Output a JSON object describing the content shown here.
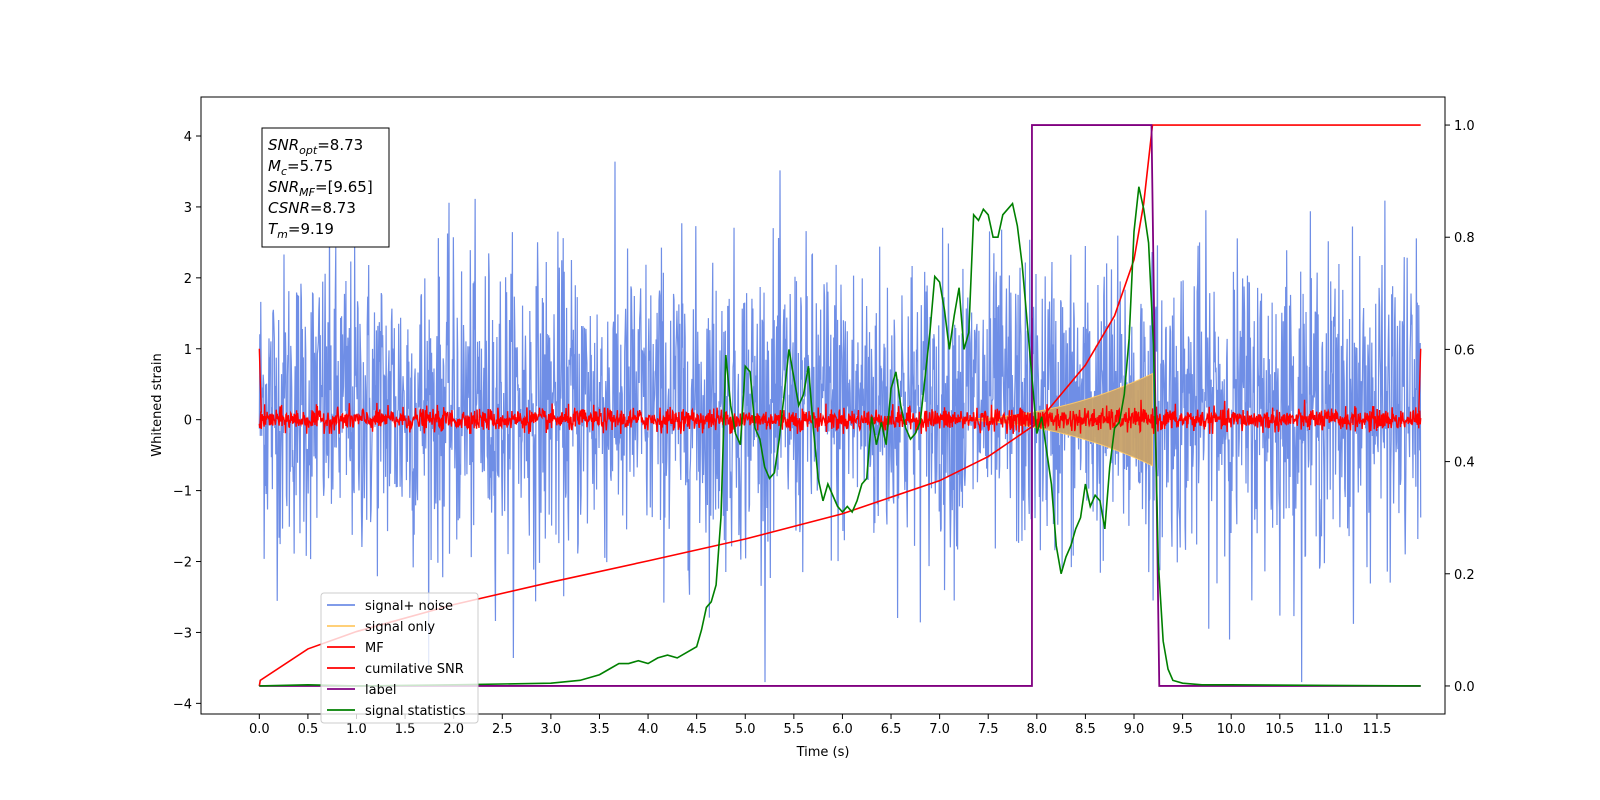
{
  "chart_data": {
    "type": "line",
    "title": "",
    "xlabel": "Time (s)",
    "ylabel": "Whitened strain",
    "xlim": [
      -0.6,
      12.2
    ],
    "ylim": [
      -4.15,
      4.55
    ],
    "y2lim": [
      -0.05,
      1.05
    ],
    "xticks": [
      0.0,
      0.5,
      1.0,
      1.5,
      2.0,
      2.5,
      3.0,
      3.5,
      4.0,
      4.5,
      5.0,
      5.5,
      6.0,
      6.5,
      7.0,
      7.5,
      8.0,
      8.5,
      9.0,
      9.5,
      10.0,
      10.5,
      11.0,
      11.5
    ],
    "xtick_labels": [
      "0.0",
      "0.5",
      "1.0",
      "1.5",
      "2.0",
      "2.5",
      "3.0",
      "3.5",
      "4.0",
      "4.5",
      "5.0",
      "5.5",
      "6.0",
      "6.5",
      "7.0",
      "7.5",
      "8.0",
      "8.5",
      "9.0",
      "9.5",
      "10.0",
      "10.5",
      "11.0",
      "11.5"
    ],
    "yticks": [
      4,
      3,
      2,
      1,
      0,
      -1,
      -2,
      -3,
      -4
    ],
    "ytick_labels": [
      "4",
      "3",
      "2",
      "1",
      "0",
      "−1",
      "−2",
      "−3",
      "−4"
    ],
    "y2ticks": [
      1.0,
      0.8,
      0.6,
      0.4,
      0.2,
      0.0
    ],
    "y2tick_labels": [
      "1.0",
      "0.8",
      "0.6",
      "0.4",
      "0.2",
      "0.0"
    ],
    "legend": {
      "placement": "lower-left",
      "entries": [
        {
          "name": "signal+ noise",
          "color": "#6f8ee6"
        },
        {
          "name": "signal only",
          "color": "#ffc966"
        },
        {
          "name": "MF",
          "color": "#ff0000"
        },
        {
          "name": "cumilative SNR",
          "color": "#ff0000"
        },
        {
          "name": "label",
          "color": "#800080"
        },
        {
          "name": "signal statistics",
          "color": "#008000"
        }
      ]
    },
    "annotations": [
      {
        "base": "SNR",
        "sub": "opt",
        "value": "=8.73"
      },
      {
        "base": "M",
        "sub": "c",
        "value": "=5.75"
      },
      {
        "base": "SNR",
        "sub": "MF",
        "value": "=[9.65]"
      },
      {
        "base": "CSNR",
        "sub": "",
        "value": "=8.73"
      },
      {
        "base": "T",
        "sub": "m",
        "value": "=9.19"
      }
    ],
    "series": [
      {
        "name": "signal+ noise",
        "color": "#6f8ee6",
        "axis": "left",
        "description": "whitened noise between approximately -3.7 and 4.2 spanning 0.0 to 11.95 s"
      },
      {
        "name": "signal only",
        "color": "#ffc966",
        "axis": "left",
        "chirp_start": 7.0,
        "chirp_end": 9.19,
        "max_amplitude": 0.65
      },
      {
        "name": "MF",
        "color": "#ff0000",
        "axis": "left",
        "noise_amplitude": 0.2
      },
      {
        "name": "cumilative SNR",
        "color": "#ff0000",
        "axis": "right",
        "x": [
          0.0,
          0.01,
          0.5,
          1.0,
          2.0,
          3.0,
          4.0,
          5.0,
          6.0,
          7.0,
          7.5,
          8.0,
          8.5,
          8.8,
          9.0,
          9.1,
          9.19,
          9.2,
          11.95
        ],
        "y": [
          0.0,
          0.01,
          0.066,
          0.097,
          0.145,
          0.185,
          0.223,
          0.262,
          0.307,
          0.366,
          0.409,
          0.468,
          0.572,
          0.66,
          0.76,
          0.86,
          1.0,
          1.0,
          1.0
        ]
      },
      {
        "name": "label",
        "color": "#800080",
        "axis": "right",
        "x": [
          0.0,
          7.95,
          7.95,
          9.18,
          9.26,
          11.95
        ],
        "y": [
          0.0,
          0.0,
          1.0,
          1.0,
          0.0,
          0.0
        ]
      },
      {
        "name": "signal statistics",
        "color": "#008000",
        "axis": "right",
        "x": [
          0.0,
          0.5,
          1.0,
          2.0,
          3.0,
          3.3,
          3.5,
          3.6,
          3.7,
          3.8,
          3.9,
          4.0,
          4.1,
          4.2,
          4.3,
          4.4,
          4.5,
          4.55,
          4.6,
          4.65,
          4.7,
          4.75,
          4.8,
          4.85,
          4.9,
          4.95,
          5.0,
          5.05,
          5.1,
          5.15,
          5.2,
          5.25,
          5.3,
          5.35,
          5.4,
          5.45,
          5.5,
          5.55,
          5.6,
          5.65,
          5.7,
          5.75,
          5.8,
          5.85,
          5.9,
          5.95,
          6.0,
          6.05,
          6.1,
          6.15,
          6.2,
          6.25,
          6.3,
          6.35,
          6.4,
          6.45,
          6.5,
          6.55,
          6.6,
          6.65,
          6.7,
          6.75,
          6.8,
          6.85,
          6.9,
          6.95,
          7.0,
          7.05,
          7.1,
          7.15,
          7.2,
          7.25,
          7.3,
          7.35,
          7.4,
          7.45,
          7.5,
          7.55,
          7.6,
          7.65,
          7.7,
          7.75,
          7.8,
          7.85,
          7.9,
          7.95,
          8.0,
          8.05,
          8.1,
          8.15,
          8.2,
          8.25,
          8.3,
          8.35,
          8.4,
          8.45,
          8.5,
          8.55,
          8.6,
          8.65,
          8.7,
          8.75,
          8.8,
          8.85,
          8.9,
          8.95,
          9.0,
          9.05,
          9.1,
          9.15,
          9.2,
          9.25,
          9.3,
          9.35,
          9.4,
          9.5,
          9.7,
          10.0,
          11.0,
          11.95
        ],
        "y": [
          0.0,
          0.002,
          0.0,
          0.002,
          0.005,
          0.01,
          0.02,
          0.03,
          0.04,
          0.04,
          0.045,
          0.04,
          0.05,
          0.055,
          0.05,
          0.06,
          0.07,
          0.1,
          0.14,
          0.15,
          0.18,
          0.3,
          0.59,
          0.5,
          0.45,
          0.43,
          0.57,
          0.56,
          0.46,
          0.44,
          0.39,
          0.37,
          0.38,
          0.44,
          0.52,
          0.6,
          0.55,
          0.5,
          0.52,
          0.57,
          0.46,
          0.37,
          0.33,
          0.36,
          0.34,
          0.32,
          0.31,
          0.32,
          0.31,
          0.33,
          0.36,
          0.37,
          0.48,
          0.43,
          0.47,
          0.43,
          0.53,
          0.56,
          0.5,
          0.46,
          0.44,
          0.45,
          0.47,
          0.55,
          0.63,
          0.73,
          0.72,
          0.67,
          0.6,
          0.66,
          0.71,
          0.6,
          0.63,
          0.84,
          0.83,
          0.85,
          0.84,
          0.8,
          0.8,
          0.84,
          0.85,
          0.86,
          0.82,
          0.75,
          0.65,
          0.55,
          0.45,
          0.48,
          0.42,
          0.36,
          0.25,
          0.2,
          0.23,
          0.25,
          0.28,
          0.3,
          0.36,
          0.32,
          0.34,
          0.33,
          0.28,
          0.39,
          0.46,
          0.47,
          0.52,
          0.62,
          0.81,
          0.89,
          0.85,
          0.79,
          0.61,
          0.22,
          0.08,
          0.03,
          0.01,
          0.005,
          0.002,
          0.002,
          0.001,
          0.0
        ]
      }
    ]
  }
}
